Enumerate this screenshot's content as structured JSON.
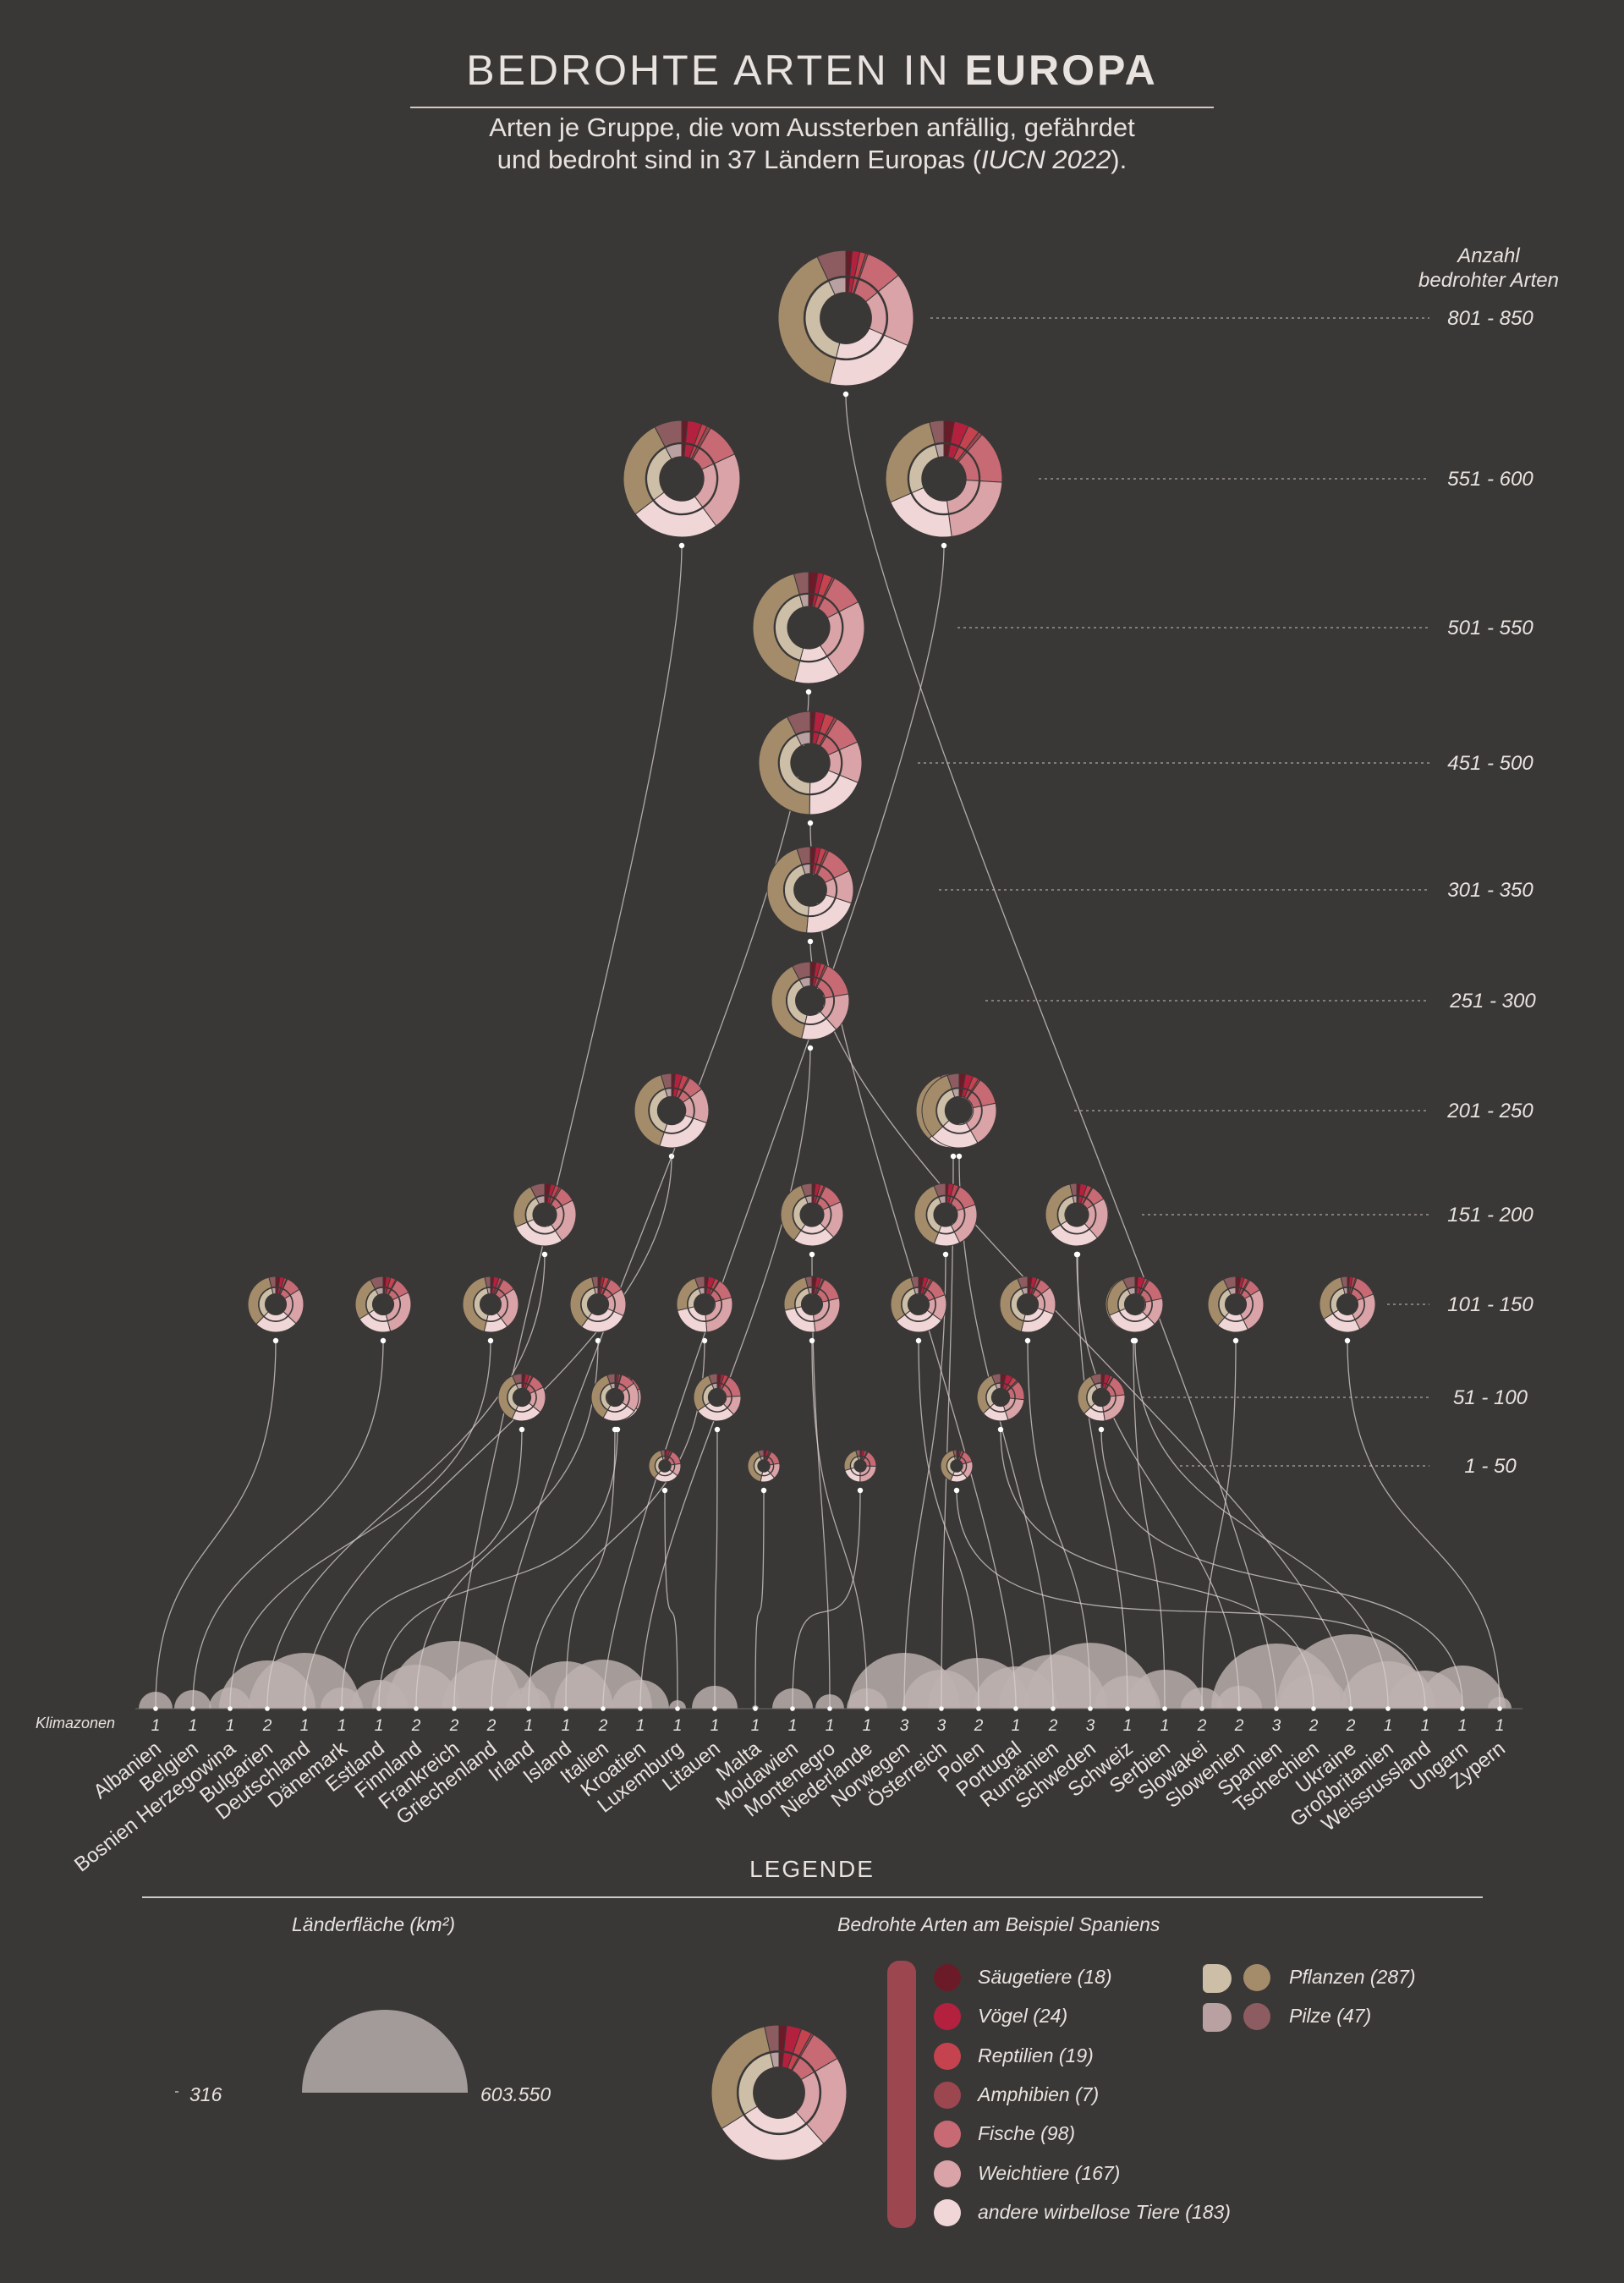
{
  "title": {
    "light": "BEDROHTE ARTEN IN",
    "bold": "EUROPA"
  },
  "subtitle": {
    "line1": "Arten je Gruppe, die vom Aussterben anfällig, gefährdet",
    "line2_start": "und bedroht sind in 37 Ländern Europas (",
    "line2_source": "IUCN 2022",
    "line2_end": ")."
  },
  "range_header": {
    "line1": "Anzahl",
    "line2": "bedrohter Arten"
  },
  "klimazonen_label": "Klimazonen",
  "colors": {
    "background": "#3a3837",
    "Säugetiere": "#6b1b27",
    "Vögel": "#b3213f",
    "Reptilien": "#c5434f",
    "Amphibien": "#9c4650",
    "Fische": "#c86a74",
    "Weichtiere": "#d9a3a7",
    "andere wirbellose Tiere": "#f0d6d7",
    "Pflanzen": "#a48c6a",
    "Pflanzen_light": "#cdbfa7",
    "Pilze": "#8d5c60",
    "Pilze_light": "#b9a1a2",
    "area": "#bdb2b0"
  },
  "chart_data": {
    "type": "donut-network",
    "title": "BEDROHTE ARTEN IN EUROPA",
    "ranges": [
      "801 - 850",
      "551 - 600",
      "501 - 550",
      "451 - 500",
      "301 - 350",
      "251 - 300",
      "201 - 250",
      "151 - 200",
      "101 - 150",
      "51 - 100",
      "1 - 50"
    ],
    "countries": [
      {
        "name": "Albanien",
        "klimazonen": 1,
        "range": "101 - 150"
      },
      {
        "name": "Belgien",
        "klimazonen": 1,
        "range": "101 - 150"
      },
      {
        "name": "Bosnien Herzegowina",
        "klimazonen": 1,
        "range": "101 - 150"
      },
      {
        "name": "Bulgarien",
        "klimazonen": 2,
        "range": "151 - 200"
      },
      {
        "name": "Deutschland",
        "klimazonen": 1,
        "range": "201 - 250"
      },
      {
        "name": "Dänemark",
        "klimazonen": 1,
        "range": "51 - 100"
      },
      {
        "name": "Estland",
        "klimazonen": 1,
        "range": "51 - 100"
      },
      {
        "name": "Finnland",
        "klimazonen": 2,
        "range": "101 - 150"
      },
      {
        "name": "Frankreich",
        "klimazonen": 2,
        "range": "551 - 600"
      },
      {
        "name": "Griechenland",
        "klimazonen": 2,
        "range": "501 - 550"
      },
      {
        "name": "Irland",
        "klimazonen": 1,
        "range": "101 - 150"
      },
      {
        "name": "Island",
        "klimazonen": 1,
        "range": "51 - 100"
      },
      {
        "name": "Italien",
        "klimazonen": 2,
        "range": "551 - 600"
      },
      {
        "name": "Kroatien",
        "klimazonen": 1,
        "range": "251 - 300"
      },
      {
        "name": "Luxemburg",
        "klimazonen": 1,
        "range": "1 - 50"
      },
      {
        "name": "Litauen",
        "klimazonen": 1,
        "range": "51 - 100"
      },
      {
        "name": "Malta",
        "klimazonen": 1,
        "range": "1 - 50"
      },
      {
        "name": "Moldawien",
        "klimazonen": 1,
        "range": "1 - 50"
      },
      {
        "name": "Montenegro",
        "klimazonen": 1,
        "range": "151 - 200"
      },
      {
        "name": "Niederlande",
        "klimazonen": 1,
        "range": "101 - 150"
      },
      {
        "name": "Norwegen",
        "klimazonen": 3,
        "range": "151 - 200"
      },
      {
        "name": "Österreich",
        "klimazonen": 3,
        "range": "201 - 250"
      },
      {
        "name": "Polen",
        "klimazonen": 2,
        "range": "101 - 150"
      },
      {
        "name": "Portugal",
        "klimazonen": 1,
        "range": "451 - 500"
      },
      {
        "name": "Rumänien",
        "klimazonen": 2,
        "range": "201 - 250"
      },
      {
        "name": "Schweden",
        "klimazonen": 3,
        "range": "101 - 150"
      },
      {
        "name": "Schweiz",
        "klimazonen": 1,
        "range": "151 - 200"
      },
      {
        "name": "Serbien",
        "klimazonen": 1,
        "range": "101 - 150"
      },
      {
        "name": "Slowakei",
        "klimazonen": 2,
        "range": "101 - 150"
      },
      {
        "name": "Slowenien",
        "klimazonen": 2,
        "range": "151 - 200"
      },
      {
        "name": "Spanien",
        "klimazonen": 3,
        "range": "801 - 850"
      },
      {
        "name": "Tschechien",
        "klimazonen": 2,
        "range": "51 - 100"
      },
      {
        "name": "Ukraine",
        "klimazonen": 2,
        "range": "301 - 350"
      },
      {
        "name": "Großbritanien",
        "klimazonen": 1,
        "range": "101 - 150"
      },
      {
        "name": "Weissrussland",
        "klimazonen": 1,
        "range": "1 - 50"
      },
      {
        "name": "Ungarn",
        "klimazonen": 1,
        "range": "51 - 100"
      },
      {
        "name": "Zypern",
        "klimazonen": 1,
        "range": "101 - 150"
      }
    ],
    "area_scale_km2": {
      "min": "316",
      "max": "603.550"
    }
  },
  "legend": {
    "title": "LEGENDE",
    "area_title": "Länderfläche (km²)",
    "area_min": "316",
    "area_max": "603.550",
    "example_title": "Bedrohte Arten am Beispiel Spaniens",
    "groups": [
      {
        "label": "Säugetiere (18)",
        "key": "Säugetiere",
        "value": 18
      },
      {
        "label": "Vögel (24)",
        "key": "Vögel",
        "value": 24
      },
      {
        "label": "Reptilien (19)",
        "key": "Reptilien",
        "value": 19
      },
      {
        "label": "Amphibien (7)",
        "key": "Amphibien",
        "value": 7
      },
      {
        "label": "Fische (98)",
        "key": "Fische",
        "value": 98
      },
      {
        "label": "Weichtiere (167)",
        "key": "Weichtiere",
        "value": 167
      },
      {
        "label": "andere wirbellose Tiere (183)",
        "key": "andere wirbellose Tiere",
        "value": 183
      }
    ],
    "groups_right": [
      {
        "label": "Pflanzen (287)",
        "key": "Pflanzen",
        "value": 287
      },
      {
        "label": "Pilze (47)",
        "key": "Pilze",
        "value": 47
      }
    ]
  }
}
